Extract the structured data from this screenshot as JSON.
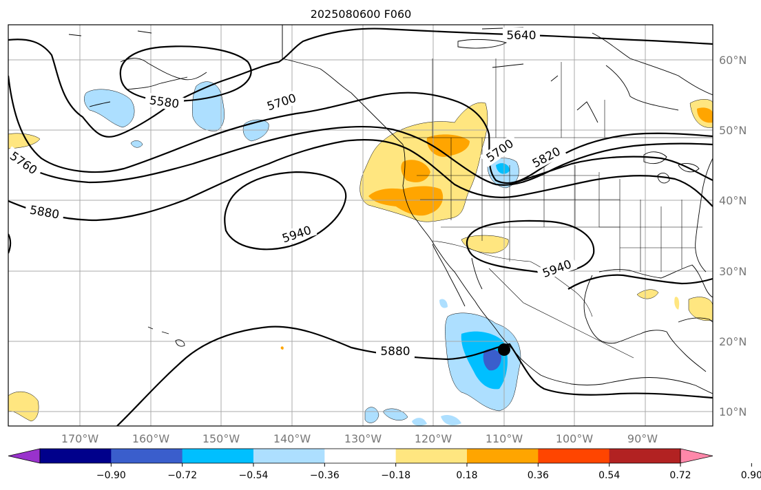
{
  "title": "2025080600 F060",
  "lon_ticks": [
    "170°W",
    "160°W",
    "150°W",
    "140°W",
    "130°W",
    "120°W",
    "110°W",
    "100°W",
    "90°W"
  ],
  "lat_ticks": [
    "60°N",
    "50°N",
    "40°N",
    "30°N",
    "20°N",
    "10°N"
  ],
  "contour_labels": [
    "5640",
    "5580",
    "5700",
    "5760",
    "5880",
    "5940",
    "5700",
    "5820",
    "5940",
    "5880"
  ],
  "colorbar": {
    "ticks": [
      "−0.90",
      "−0.72",
      "−0.54",
      "−0.36",
      "−0.18",
      "0.18",
      "0.36",
      "0.54",
      "0.72",
      "0.90"
    ],
    "colors": [
      "#9932CC",
      "#00008B",
      "#3A5ECC",
      "#00BFFF",
      "#ADDFFF",
      "#FFFFFF",
      "#FFE680",
      "#FFA500",
      "#FF4500",
      "#B22222",
      "#FF88AA"
    ]
  },
  "storm_marker": "tropical cyclone position"
}
